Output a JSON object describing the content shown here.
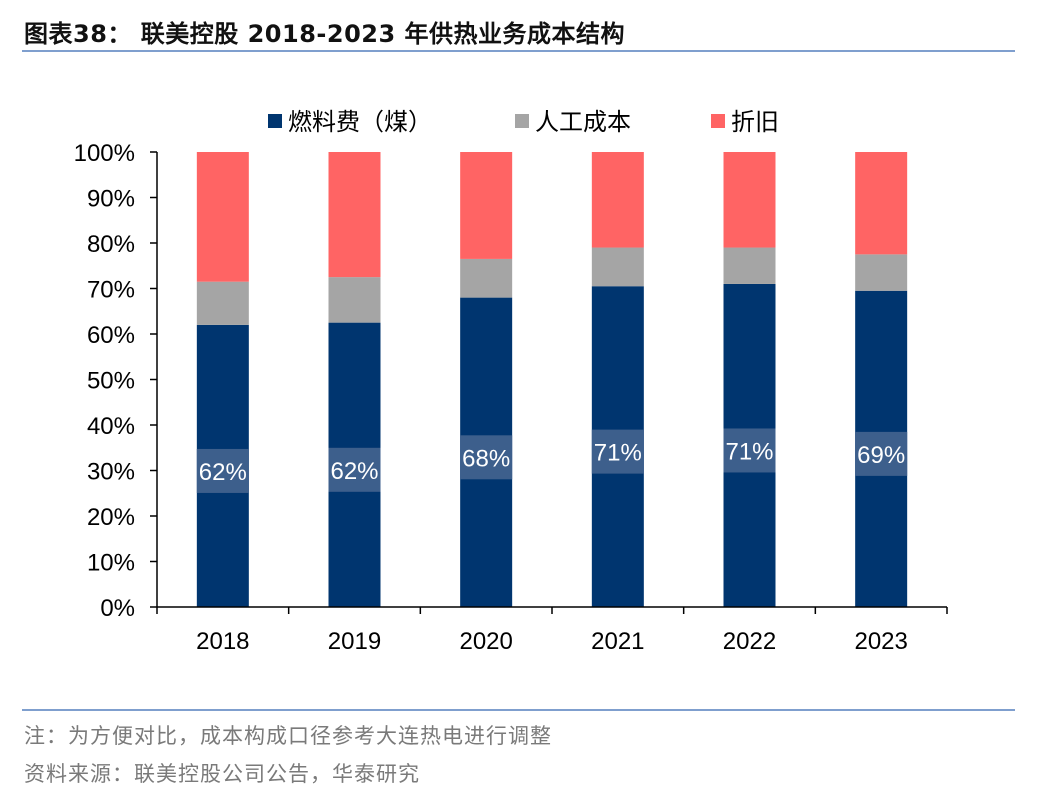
{
  "figure": {
    "title": "图表38： 联美控股 2018-2023 年供热业务成本结构",
    "note": "注：为方便对比，成本构成口径参考大连热电进行调整",
    "source": "资料来源：联美控股公司公告，华泰研究"
  },
  "colors": {
    "fuel": "#00356f",
    "labor": "#a5a5a5",
    "depreciation": "#ff6464",
    "rule": "#7f9fce",
    "label_box": "#3d5f8c"
  },
  "chart_data": {
    "type": "bar",
    "stacked": true,
    "normalized": true,
    "categories": [
      "2018",
      "2019",
      "2020",
      "2021",
      "2022",
      "2023"
    ],
    "series": [
      {
        "name": "燃料费（煤）",
        "values": [
          0.62,
          0.625,
          0.68,
          0.705,
          0.71,
          0.695
        ],
        "data_labels": [
          "62%",
          "62%",
          "68%",
          "71%",
          "71%",
          "69%"
        ]
      },
      {
        "name": "人工成本",
        "values": [
          0.095,
          0.1,
          0.085,
          0.085,
          0.08,
          0.08
        ]
      },
      {
        "name": "折旧",
        "values": [
          0.285,
          0.275,
          0.235,
          0.21,
          0.21,
          0.225
        ]
      }
    ],
    "ylim": [
      0,
      1
    ],
    "yticks": [
      "0%",
      "10%",
      "20%",
      "30%",
      "40%",
      "50%",
      "60%",
      "70%",
      "80%",
      "90%",
      "100%"
    ],
    "xlabel": "",
    "ylabel": "",
    "grid": false,
    "legend_position": "top"
  }
}
